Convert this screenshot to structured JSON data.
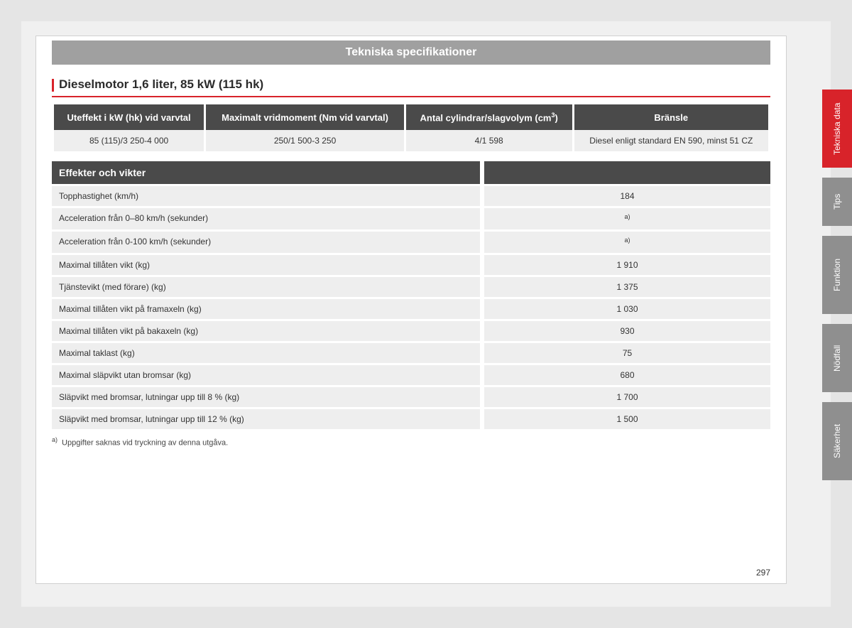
{
  "banner": "Tekniska specifikationer",
  "section_title": "Dieselmotor 1,6 liter, 85 kW (115 hk)",
  "spec_headers": {
    "power": "Uteffekt i kW (hk) vid varvtal",
    "torque": "Maximalt vridmoment (Nm vid varvtal)",
    "cyl": "Antal cylindrar/slagvolym (cm",
    "cyl_sup": "3",
    "cyl_close": ")",
    "fuel": "Bränsle"
  },
  "spec_values": {
    "power": "85 (115)/3 250-4 000",
    "torque": "250/1 500-3 250",
    "cyl": "4/1 598",
    "fuel": "Diesel enligt standard EN 590, minst 51 CZ"
  },
  "weights_title": "Effekter och vikter",
  "weights_rows": [
    {
      "label": "Topphastighet (km/h)",
      "value": "184"
    },
    {
      "label": "Acceleration från 0–80 km/h (sekunder)",
      "value_sup": "a)"
    },
    {
      "label": "Acceleration från 0-100 km/h (sekunder)",
      "value_sup": "a)"
    },
    {
      "label": "Maximal tillåten vikt (kg)",
      "value": "1 910"
    },
    {
      "label": "Tjänstevikt (med förare) (kg)",
      "value": "1 375"
    },
    {
      "label": "Maximal tillåten vikt på framaxeln (kg)",
      "value": "1 030"
    },
    {
      "label": "Maximal tillåten vikt på bakaxeln (kg)",
      "value": "930"
    },
    {
      "label": "Maximal taklast (kg)",
      "value": "75"
    },
    {
      "label": "Maximal släpvikt utan bromsar (kg)",
      "value": "680"
    },
    {
      "label": "Släpvikt med bromsar, lutningar upp till 8 % (kg)",
      "value": "1 700"
    },
    {
      "label": "Släpvikt med bromsar, lutningar upp till 12 % (kg)",
      "value": "1 500"
    }
  ],
  "footnote": {
    "marker": "a)",
    "text": "Uppgifter saknas vid tryckning av denna utgåva."
  },
  "page_number": "297",
  "tabs": {
    "tekniska": "Tekniska data",
    "tips": "Tips",
    "funktion": "Funktion",
    "nodfall": "Nödfall",
    "sakerhet": "Säkerhet"
  },
  "colors": {
    "accent_red": "#d8232a",
    "header_dark": "#4a4a4a",
    "row_grey": "#eeeeee",
    "tab_grey": "#8f8f8f",
    "page_bg": "#ffffff",
    "outer_bg": "#e5e5e5"
  }
}
